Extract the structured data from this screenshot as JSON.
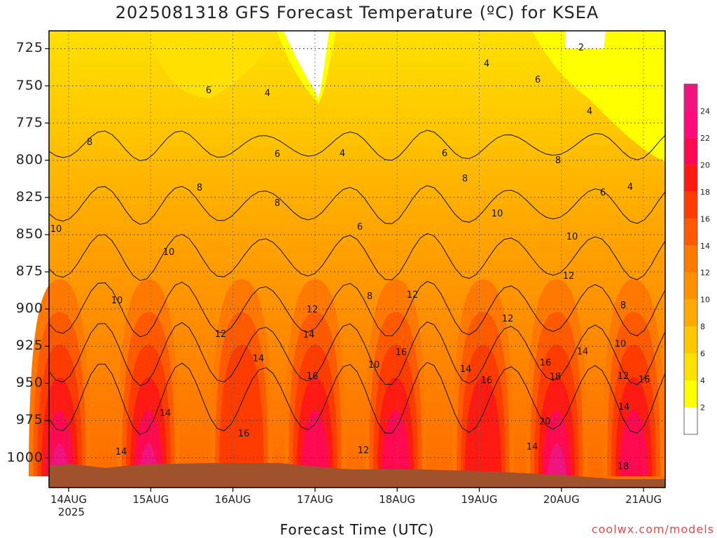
{
  "title": "2025081318 GFS Forecast Temperature (ºC) for KSEA",
  "chart_data": {
    "type": "heatmap",
    "title": "2025081318 GFS Forecast Temperature (ºC) for KSEA",
    "xlabel": "Forecast Time (UTC)",
    "ylabel": "",
    "x_ticks": [
      "14AUG",
      "15AUG",
      "16AUG",
      "17AUG",
      "18AUG",
      "19AUG",
      "20AUG",
      "21AUG"
    ],
    "x_year": "2025",
    "y_ticks": [
      725,
      750,
      775,
      800,
      825,
      850,
      875,
      900,
      925,
      950,
      975,
      1000
    ],
    "y_range": [
      1020,
      713
    ],
    "contour_levels": [
      2,
      4,
      6,
      8,
      10,
      12,
      14,
      16,
      18,
      20,
      22,
      24
    ],
    "contour_labels": [
      "2",
      "4",
      "6",
      "8",
      "10",
      "12",
      "14",
      "16",
      "18",
      "20"
    ],
    "colorbar": {
      "ticks": [
        "2",
        "4",
        "6",
        "8",
        "10",
        "12",
        "14",
        "16",
        "18",
        "20",
        "22",
        "24"
      ],
      "colors": [
        "#ffffff",
        "#ffff00",
        "#ffe000",
        "#ffc800",
        "#ffaa00",
        "#ff9000",
        "#ff7800",
        "#ff5a00",
        "#ff3c00",
        "#ff1a14",
        "#ff0a50",
        "#ff0a7a",
        "#f0147f"
      ]
    },
    "grid": true,
    "series": [
      {
        "day": "14AUG",
        "surface_temp_c": 24
      },
      {
        "day": "15AUG",
        "surface_temp_c": 24
      },
      {
        "day": "16AUG",
        "surface_temp_c": 18
      },
      {
        "day": "17AUG",
        "surface_temp_c": 22
      },
      {
        "day": "18AUG",
        "surface_temp_c": 22
      },
      {
        "day": "19AUG",
        "surface_temp_c": 20
      },
      {
        "day": "20AUG",
        "surface_temp_c": 24
      },
      {
        "day": "21AUG",
        "surface_temp_c": 22
      }
    ]
  },
  "footer": {
    "credit": "coolwx.com/models"
  }
}
